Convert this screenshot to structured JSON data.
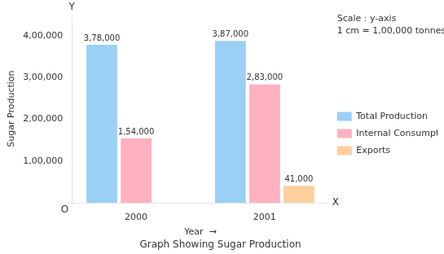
{
  "chart_data": {
    "type": "bar",
    "title": "Graph Showing Sugar Production",
    "x_label": "Year  →",
    "y_label": "Sugar Production",
    "categories": [
      "2000",
      "2001"
    ],
    "series": [
      {
        "name": "Total Production",
        "values": [
          378000,
          387000
        ],
        "value_labels": [
          "3,78,000",
          "3,87,000"
        ]
      },
      {
        "name": "Internal Consumption",
        "values": [
          154000,
          283000
        ],
        "value_labels": [
          "1,54,000",
          "2,83,000"
        ]
      },
      {
        "name": "Exports",
        "values": [
          null,
          41000
        ],
        "value_labels": [
          null,
          "41,000"
        ]
      }
    ],
    "ylim": [
      0,
      450000
    ],
    "yticks": [
      {
        "value": 100000,
        "label": "1,00,000"
      },
      {
        "value": 200000,
        "label": "2,00,000"
      },
      {
        "value": 300000,
        "label": "3,00,000"
      },
      {
        "value": 400000,
        "label": "4,00,000"
      }
    ],
    "grid": false,
    "legend": "right",
    "data_labels": true,
    "annotations": [
      "Scale : y-axis",
      "1 cm = 1,00,000 tonnes",
      "O",
      "X",
      "Y"
    ]
  }
}
